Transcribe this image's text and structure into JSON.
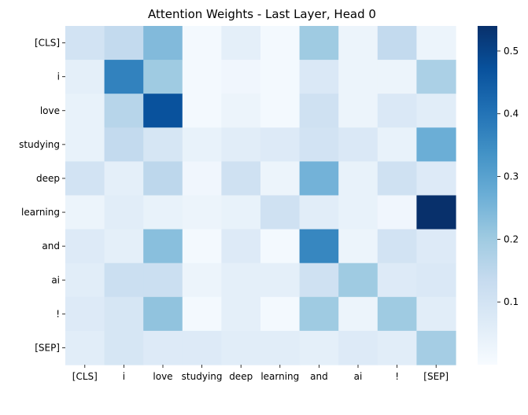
{
  "chart_data": {
    "type": "heatmap",
    "title": "Attention Weights - Last Layer, Head 0",
    "x_labels": [
      "[CLS]",
      "i",
      "love",
      "studying",
      "deep",
      "learning",
      "and",
      "ai",
      "!",
      "[SEP]"
    ],
    "y_labels": [
      "[CLS]",
      "i",
      "love",
      "studying",
      "deep",
      "learning",
      "and",
      "ai",
      "!",
      "[SEP]"
    ],
    "values": [
      [
        0.1,
        0.14,
        0.24,
        0.01,
        0.05,
        0.01,
        0.2,
        0.03,
        0.14,
        0.03
      ],
      [
        0.05,
        0.37,
        0.2,
        0.01,
        0.02,
        0.01,
        0.08,
        0.03,
        0.03,
        0.18
      ],
      [
        0.04,
        0.16,
        0.47,
        0.01,
        0.03,
        0.01,
        0.11,
        0.03,
        0.08,
        0.06
      ],
      [
        0.04,
        0.14,
        0.09,
        0.04,
        0.06,
        0.07,
        0.1,
        0.08,
        0.04,
        0.27
      ],
      [
        0.1,
        0.05,
        0.15,
        0.02,
        0.11,
        0.03,
        0.26,
        0.04,
        0.11,
        0.07
      ],
      [
        0.03,
        0.06,
        0.04,
        0.03,
        0.04,
        0.11,
        0.06,
        0.04,
        0.02,
        0.54
      ],
      [
        0.07,
        0.05,
        0.23,
        0.01,
        0.07,
        0.01,
        0.36,
        0.03,
        0.1,
        0.07
      ],
      [
        0.06,
        0.12,
        0.12,
        0.03,
        0.05,
        0.05,
        0.11,
        0.2,
        0.07,
        0.08
      ],
      [
        0.07,
        0.09,
        0.22,
        0.01,
        0.05,
        0.01,
        0.2,
        0.03,
        0.2,
        0.06
      ],
      [
        0.06,
        0.09,
        0.07,
        0.07,
        0.06,
        0.06,
        0.05,
        0.07,
        0.06,
        0.19
      ]
    ],
    "colormap": "Blues",
    "colorbar": {
      "range": [
        0.0,
        0.54
      ],
      "ticks": [
        "0.1",
        "0.2",
        "0.3",
        "0.4",
        "0.5"
      ],
      "tick_values": [
        0.1,
        0.2,
        0.3,
        0.4,
        0.5
      ]
    }
  }
}
